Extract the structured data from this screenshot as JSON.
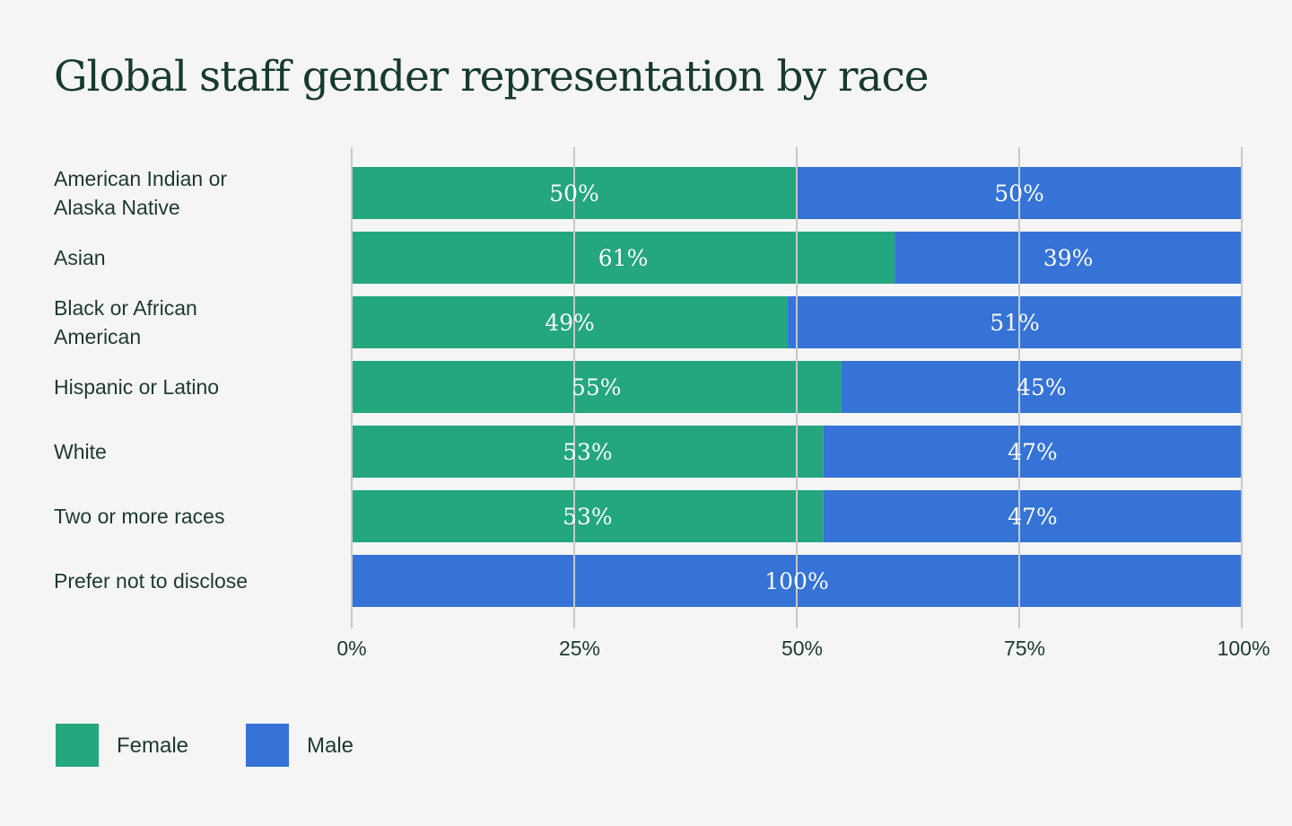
{
  "chart_data": {
    "type": "bar",
    "orientation": "horizontal",
    "stacked": true,
    "title": "Global staff gender representation by race",
    "categories": [
      [
        "American Indian or",
        "Alaska Native"
      ],
      [
        "Asian"
      ],
      [
        "Black or African",
        "American"
      ],
      [
        "Hispanic or Latino"
      ],
      [
        "White"
      ],
      [
        "Two or more races"
      ],
      [
        "Prefer not to disclose"
      ]
    ],
    "series": [
      {
        "name": "Female",
        "color": "#24a67f",
        "values": [
          50,
          61,
          49,
          55,
          53,
          53,
          0
        ]
      },
      {
        "name": "Male",
        "color": "#3573d6",
        "values": [
          50,
          39,
          51,
          45,
          47,
          47,
          100
        ]
      }
    ],
    "xlim": [
      0,
      100
    ],
    "xticks": [
      0,
      25,
      50,
      75,
      100
    ],
    "xtick_labels": [
      "0%",
      "25%",
      "50%",
      "75%",
      "100%"
    ],
    "grid": true,
    "legend_position": "bottom-left",
    "value_suffix": "%"
  }
}
